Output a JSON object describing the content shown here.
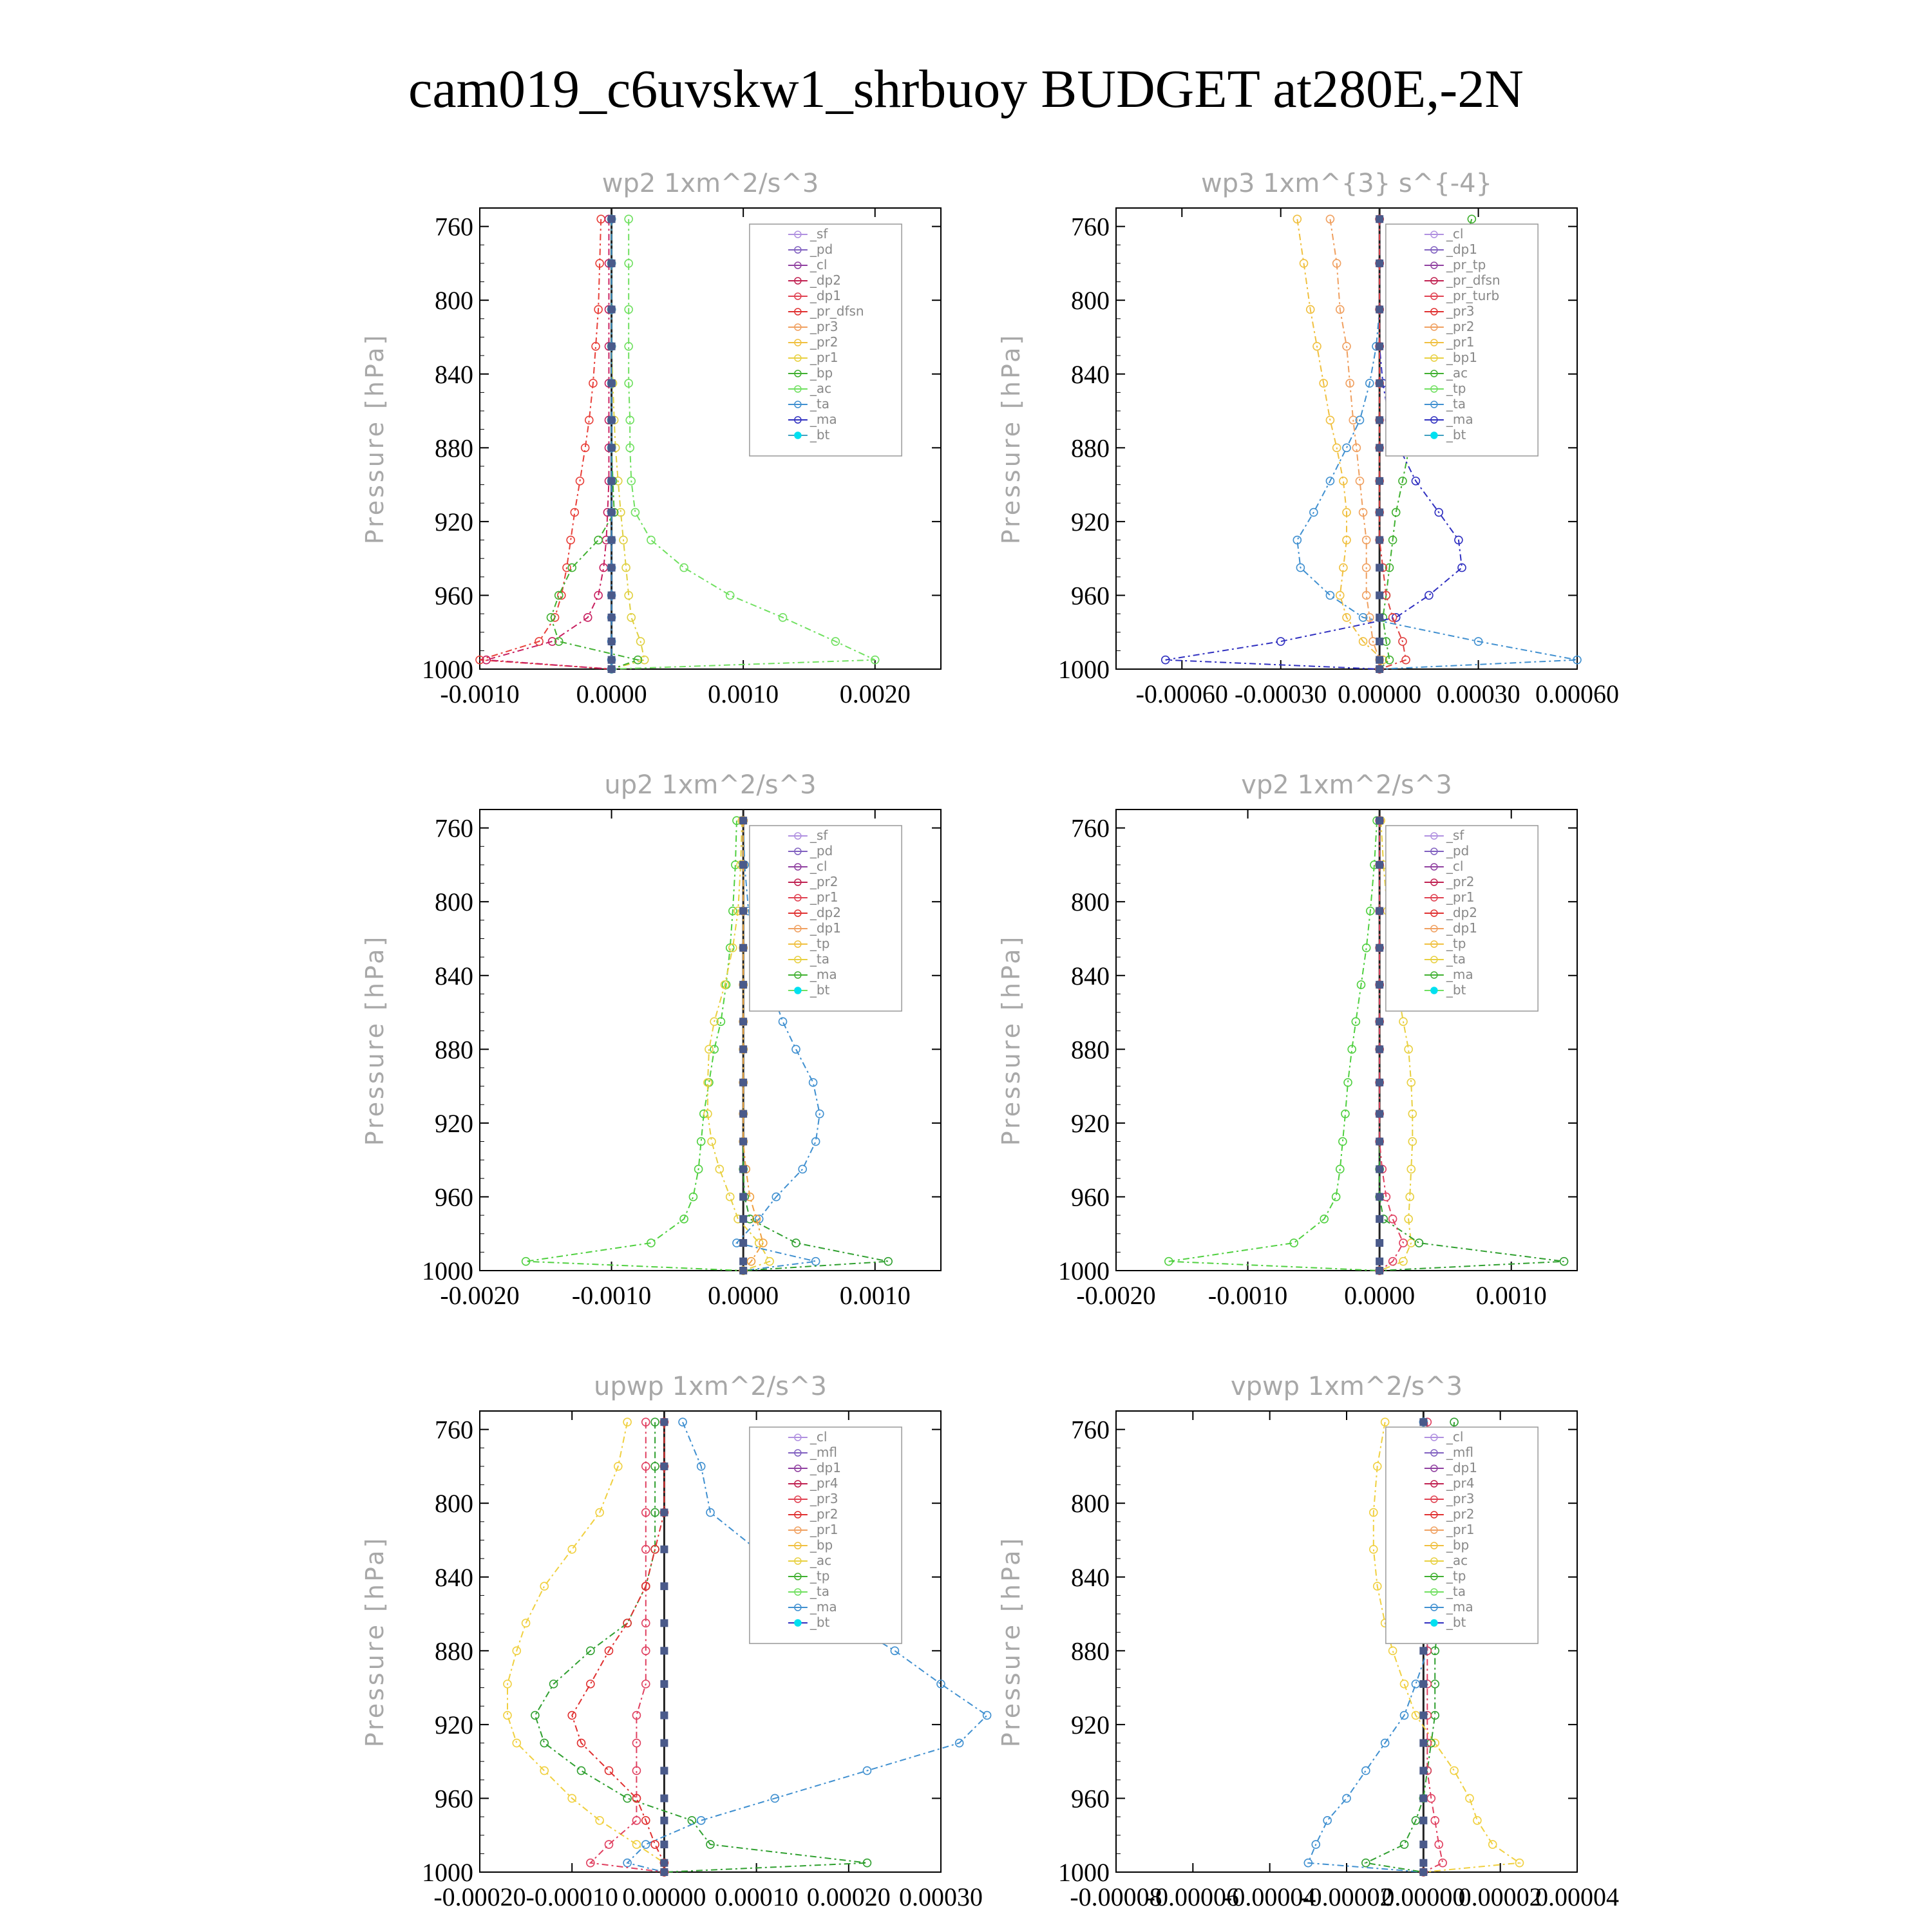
{
  "title": "cam019_c6uvskw1_shrbuoy  BUDGET at280E,-2N",
  "chart_data": [
    {
      "type": "line",
      "title": "wp2   1xm^2/s^3",
      "ylabel": "Pressure [hPa]",
      "xlim": [
        -0.001,
        0.0025
      ],
      "ylim": [
        750,
        1000
      ],
      "xticks": [
        "-0.0010",
        "0.0000",
        "0.0010",
        "0.0020"
      ],
      "xtick_values": [
        -0.001,
        0,
        0.001,
        0.002
      ],
      "yticks": [
        "760",
        "800",
        "840",
        "880",
        "920",
        "960",
        "1000"
      ],
      "legend_position": "top-right",
      "legend": [
        "_sf",
        "_pd",
        "_cl",
        "_dp2",
        "_dp1",
        "_pr_dfsn",
        "_pr3",
        "_pr2",
        "_pr1",
        "_bp",
        "_ac",
        "_ta",
        "_ma",
        "_bt"
      ],
      "p": [
        756,
        780,
        805,
        825,
        845,
        865,
        880,
        898,
        915,
        930,
        945,
        960,
        972,
        985,
        995,
        1000
      ],
      "series": [
        {
          "name": "_dp1",
          "color": "#e8403a",
          "values": [
            -8e-05,
            -9e-05,
            -0.0001,
            -0.00012,
            -0.00014,
            -0.00017,
            -0.0002,
            -0.00024,
            -0.00028,
            -0.00031,
            -0.00034,
            -0.00038,
            -0.00043,
            -0.00055,
            -0.001,
            0
          ]
        },
        {
          "name": "_dp2",
          "color": "#c82060",
          "values": [
            -2e-05,
            -2e-05,
            -2e-05,
            -2e-05,
            -2e-05,
            -2e-05,
            -2e-05,
            -2e-05,
            -3e-05,
            -4e-05,
            -6e-05,
            -0.0001,
            -0.00018,
            -0.00045,
            -0.00095,
            0
          ]
        },
        {
          "name": "_pr1",
          "color": "#e0d040",
          "values": [
            0,
            0,
            0,
            0,
            1e-05,
            2e-05,
            3e-05,
            5e-05,
            7e-05,
            9e-05,
            0.00011,
            0.00013,
            0.00015,
            0.00022,
            0.00025,
            0
          ]
        },
        {
          "name": "_bp",
          "color": "#40b030",
          "values": [
            0,
            0,
            0,
            0,
            0,
            0,
            0,
            1e-05,
            2e-05,
            -0.0001,
            -0.0003,
            -0.0004,
            -0.00046,
            -0.0004,
            0.0002,
            0
          ]
        },
        {
          "name": "_ac",
          "color": "#70e060",
          "values": [
            0.00013,
            0.00013,
            0.00013,
            0.00013,
            0.00013,
            0.00014,
            0.00014,
            0.00015,
            0.00018,
            0.0003,
            0.00055,
            0.0009,
            0.0013,
            0.0017,
            0.002,
            0
          ]
        },
        {
          "name": "_ma",
          "color": "#4090d0",
          "values": [
            0,
            0,
            0,
            0,
            0,
            0,
            0,
            0,
            0,
            0,
            0,
            0,
            0,
            0,
            0,
            0
          ]
        }
      ]
    },
    {
      "type": "line",
      "title": "wp3   1xm^{3} s^{-4}",
      "ylabel": "Pressure [hPa]",
      "xlim": [
        -0.0008,
        0.0006
      ],
      "ylim": [
        750,
        1000
      ],
      "xticks": [
        "-0.00060",
        "-0.00030",
        "0.00000",
        "0.00030",
        "0.00060"
      ],
      "xtick_values": [
        -0.0006,
        -0.0003,
        0,
        0.0003,
        0.0006
      ],
      "yticks": [
        "760",
        "800",
        "840",
        "880",
        "920",
        "960",
        "1000"
      ],
      "legend_position": "top-right",
      "legend": [
        "_cl",
        "_dp1",
        "_pr_tp",
        "_pr_dfsn",
        "_pr_turb",
        "_pr3",
        "_pr2",
        "_pr1",
        "_bp1",
        "_ac",
        "_tp",
        "_ta",
        "_ma",
        "_bt"
      ],
      "p": [
        756,
        780,
        805,
        825,
        845,
        865,
        880,
        898,
        915,
        930,
        945,
        960,
        972,
        985,
        995,
        1000
      ],
      "series": [
        {
          "name": "_pr1",
          "color": "#f0c040",
          "values": [
            -0.00025,
            -0.00023,
            -0.00021,
            -0.00019,
            -0.00017,
            -0.00015,
            -0.00013,
            -0.00011,
            -0.0001,
            -0.0001,
            -0.00011,
            -0.00012,
            -0.0001,
            -5e-05,
            1e-05,
            0
          ]
        },
        {
          "name": "_pr2",
          "color": "#f0a060",
          "values": [
            -0.00015,
            -0.00013,
            -0.00012,
            -0.0001,
            -9e-05,
            -8e-05,
            -7e-05,
            -6e-05,
            -5e-05,
            -4e-05,
            -4e-05,
            -4e-05,
            -3e-05,
            -2e-05,
            0,
            0
          ]
        },
        {
          "name": "_ac",
          "color": "#40b030",
          "values": [
            0.00028,
            0.00024,
            0.0002,
            0.00017,
            0.00014,
            0.00011,
            9e-05,
            7e-05,
            5e-05,
            4e-05,
            3e-05,
            2e-05,
            1e-05,
            2e-05,
            3e-05,
            0
          ]
        },
        {
          "name": "_tp",
          "color": "#4090d0",
          "values": [
            0,
            0,
            0,
            -1e-05,
            -3e-05,
            -6e-05,
            -0.0001,
            -0.00015,
            -0.0002,
            -0.00025,
            -0.00024,
            -0.00015,
            -5e-05,
            0.0003,
            0.0006,
            0
          ]
        },
        {
          "name": "_ta",
          "color": "#3030c0",
          "values": [
            0,
            0,
            0,
            0,
            1e-05,
            3e-05,
            6e-05,
            0.00011,
            0.00018,
            0.00024,
            0.00025,
            0.00015,
            5e-05,
            -0.0003,
            -0.00065,
            0
          ]
        },
        {
          "name": "_dp1",
          "color": "#e04040",
          "values": [
            0,
            0,
            0,
            0,
            0,
            0,
            0,
            0,
            0,
            0,
            1e-05,
            2e-05,
            4e-05,
            7e-05,
            8e-05,
            0
          ]
        }
      ]
    },
    {
      "type": "line",
      "title": "up2   1xm^2/s^3",
      "ylabel": "Pressure [hPa]",
      "xlim": [
        -0.002,
        0.0015
      ],
      "ylim": [
        750,
        1000
      ],
      "xticks": [
        "-0.0020",
        "-0.0010",
        "0.0000",
        "0.0010"
      ],
      "xtick_values": [
        -0.002,
        -0.001,
        0,
        0.001
      ],
      "yticks": [
        "760",
        "800",
        "840",
        "880",
        "920",
        "960",
        "1000"
      ],
      "legend_position": "top-right",
      "legend": [
        "_sf",
        "_pd",
        "_cl",
        "_pr2",
        "_pr1",
        "_dp2",
        "_dp1",
        "_tp",
        "_ta",
        "_ma",
        "_bt"
      ],
      "p": [
        756,
        780,
        805,
        825,
        845,
        865,
        880,
        898,
        915,
        930,
        945,
        960,
        972,
        985,
        995,
        1000
      ],
      "series": [
        {
          "name": "_dp1",
          "color": "#50d040",
          "values": [
            -5e-05,
            -6e-05,
            -8e-05,
            -0.0001,
            -0.00013,
            -0.00017,
            -0.00022,
            -0.00026,
            -0.0003,
            -0.00032,
            -0.00034,
            -0.00038,
            -0.00045,
            -0.0007,
            -0.00165,
            0
          ]
        },
        {
          "name": "_pr1",
          "color": "#e8d040",
          "values": [
            -1e-05,
            -2e-05,
            -4e-05,
            -8e-05,
            -0.00014,
            -0.00022,
            -0.00026,
            -0.00027,
            -0.00027,
            -0.00024,
            -0.00018,
            -0.0001,
            -4e-05,
            0.00012,
            0.0002,
            0
          ]
        },
        {
          "name": "_tp",
          "color": "#4090d0",
          "values": [
            0,
            1e-05,
            4e-05,
            0.00012,
            0.0002,
            0.0003,
            0.0004,
            0.00053,
            0.00058,
            0.00055,
            0.00045,
            0.00025,
            0.00012,
            -5e-05,
            0.00055,
            0
          ]
        },
        {
          "name": "_dp2",
          "color": "#30a030",
          "values": [
            0,
            0,
            0,
            0,
            0,
            0,
            0,
            0,
            0,
            0,
            0,
            1e-05,
            5e-05,
            0.0004,
            0.0011,
            0
          ]
        },
        {
          "name": "_pr2",
          "color": "#f0a040",
          "values": [
            0,
            0,
            0,
            0,
            0,
            0,
            0,
            0,
            0,
            0,
            2e-05,
            5e-05,
            0.0001,
            0.00015,
            6e-05,
            0
          ]
        }
      ]
    },
    {
      "type": "line",
      "title": "vp2   1xm^2/s^3",
      "ylabel": "Pressure [hPa]",
      "xlim": [
        -0.002,
        0.0015
      ],
      "ylim": [
        750,
        1000
      ],
      "xticks": [
        "-0.0020",
        "-0.0010",
        "0.0000",
        "0.0010"
      ],
      "xtick_values": [
        -0.002,
        -0.001,
        0,
        0.001
      ],
      "yticks": [
        "760",
        "800",
        "840",
        "880",
        "920",
        "960",
        "1000"
      ],
      "legend_position": "top-right",
      "legend": [
        "_sf",
        "_pd",
        "_cl",
        "_pr2",
        "_pr1",
        "_dp2",
        "_dp1",
        "_tp",
        "_ta",
        "_ma",
        "_bt"
      ],
      "p": [
        756,
        780,
        805,
        825,
        845,
        865,
        880,
        898,
        915,
        930,
        945,
        960,
        972,
        985,
        995,
        1000
      ],
      "series": [
        {
          "name": "_dp1",
          "color": "#50d040",
          "values": [
            -2e-05,
            -4e-05,
            -7e-05,
            -0.0001,
            -0.00014,
            -0.00018,
            -0.00021,
            -0.00024,
            -0.00026,
            -0.00028,
            -0.0003,
            -0.00033,
            -0.00042,
            -0.00065,
            -0.0016,
            0
          ]
        },
        {
          "name": "_pr1",
          "color": "#e8d040",
          "values": [
            1e-05,
            3e-05,
            6e-05,
            9e-05,
            0.00013,
            0.00018,
            0.00022,
            0.00024,
            0.00025,
            0.00025,
            0.00024,
            0.00023,
            0.00022,
            0.00024,
            0.00018,
            0
          ]
        },
        {
          "name": "_dp2",
          "color": "#30a030",
          "values": [
            0,
            0,
            0,
            0,
            0,
            0,
            0,
            0,
            0,
            0,
            0,
            0,
            3e-05,
            0.0003,
            0.0014,
            0
          ]
        },
        {
          "name": "_pd",
          "color": "#e04060",
          "values": [
            0,
            0,
            0,
            0,
            0,
            0,
            0,
            0,
            0,
            0,
            2e-05,
            5e-05,
            0.0001,
            0.00018,
            0.0001,
            0
          ]
        }
      ]
    },
    {
      "type": "line",
      "title": "upwp   1xm^2/s^3",
      "ylabel": "Pressure [hPa]",
      "xlim": [
        -0.0002,
        0.0003
      ],
      "ylim": [
        750,
        1000
      ],
      "xticks": [
        "-0.00020",
        "-0.00010",
        "0.00000",
        "0.00010",
        "0.00020",
        "0.00030"
      ],
      "xtick_values": [
        -0.0002,
        -0.0001,
        0,
        0.0001,
        0.0002,
        0.0003
      ],
      "yticks": [
        "760",
        "800",
        "840",
        "880",
        "920",
        "960",
        "1000"
      ],
      "legend_position": "top-right",
      "legend": [
        "_cl",
        "_mfl",
        "_dp1",
        "_pr4",
        "_pr3",
        "_pr2",
        "_pr1",
        "_bp",
        "_ac",
        "_tp",
        "_ta",
        "_ma",
        "_bt"
      ],
      "p": [
        756,
        780,
        805,
        825,
        845,
        865,
        880,
        898,
        915,
        930,
        945,
        960,
        972,
        985,
        995,
        1000
      ],
      "series": [
        {
          "name": "_pr1",
          "color": "#f0d040",
          "values": [
            -4e-05,
            -5e-05,
            -7e-05,
            -0.0001,
            -0.00013,
            -0.00015,
            -0.00016,
            -0.00017,
            -0.00017,
            -0.00016,
            -0.00013,
            -0.0001,
            -7e-05,
            -3e-05,
            0,
            0
          ]
        },
        {
          "name": "_bp",
          "color": "#30a030",
          "values": [
            -1e-05,
            -1e-05,
            -1e-05,
            -1e-05,
            -2e-05,
            -4e-05,
            -8e-05,
            -0.00012,
            -0.00014,
            -0.00013,
            -9e-05,
            -4e-05,
            3e-05,
            5e-05,
            0.00022,
            0
          ]
        },
        {
          "name": "_tp",
          "color": "#4090d0",
          "values": [
            2e-05,
            4e-05,
            5e-05,
            0.0001,
            0.00015,
            0.0002,
            0.00025,
            0.0003,
            0.00035,
            0.00032,
            0.00022,
            0.00012,
            4e-05,
            -2e-05,
            -4e-05,
            0
          ]
        },
        {
          "name": "_dp1",
          "color": "#e04060",
          "values": [
            -2e-05,
            -2e-05,
            -2e-05,
            -2e-05,
            -2e-05,
            -2e-05,
            -2e-05,
            -2e-05,
            -3e-05,
            -3e-05,
            -3e-05,
            -3e-05,
            -3e-05,
            -6e-05,
            -8e-05,
            0
          ]
        },
        {
          "name": "_pr4",
          "color": "#e03030",
          "values": [
            0,
            0,
            0,
            -1e-05,
            -2e-05,
            -4e-05,
            -6e-05,
            -8e-05,
            -0.0001,
            -9e-05,
            -6e-05,
            -3e-05,
            -2e-05,
            -1e-05,
            0,
            0
          ]
        }
      ]
    },
    {
      "type": "line",
      "title": "vpwp   1xm^2/s^3",
      "ylabel": "Pressure [hPa]",
      "xlim": [
        -8e-05,
        4e-05
      ],
      "ylim": [
        750,
        1000
      ],
      "xticks": [
        "-0.00008",
        "-0.00006",
        "-0.00004",
        "-0.00002",
        "0.00000",
        "0.00002",
        "0.00004"
      ],
      "xtick_values": [
        -8e-05,
        -6e-05,
        -4e-05,
        -2e-05,
        0,
        2e-05,
        4e-05
      ],
      "yticks": [
        "760",
        "800",
        "840",
        "880",
        "920",
        "960",
        "1000"
      ],
      "legend_position": "top-right",
      "legend": [
        "_cl",
        "_mfl",
        "_dp1",
        "_pr4",
        "_pr3",
        "_pr2",
        "_pr1",
        "_bp",
        "_ac",
        "_tp",
        "_ta",
        "_ma",
        "_bt"
      ],
      "p": [
        756,
        780,
        805,
        825,
        845,
        865,
        880,
        898,
        915,
        930,
        945,
        960,
        972,
        985,
        995,
        1000
      ],
      "series": [
        {
          "name": "_pr1",
          "color": "#f0d040",
          "values": [
            -1e-05,
            -1.2e-05,
            -1.3e-05,
            -1.3e-05,
            -1.2e-05,
            -1e-05,
            -8e-06,
            -5e-06,
            -2e-06,
            3e-06,
            8e-06,
            1.2e-05,
            1.4e-05,
            1.8e-05,
            2.5e-05,
            0
          ]
        },
        {
          "name": "_tp",
          "color": "#4090d0",
          "values": [
            0,
            0,
            0,
            0,
            1e-06,
            1e-06,
            1e-06,
            -2e-06,
            -5e-06,
            -1e-05,
            -1.5e-05,
            -2e-05,
            -2.5e-05,
            -2.8e-05,
            -3e-05,
            0
          ]
        },
        {
          "name": "_bp",
          "color": "#30a030",
          "values": [
            8e-06,
            7e-06,
            6e-06,
            5e-06,
            4e-06,
            4e-06,
            3e-06,
            3e-06,
            3e-06,
            2e-06,
            1e-06,
            0,
            -2e-06,
            -5e-06,
            -1.5e-05,
            0
          ]
        },
        {
          "name": "_dp1",
          "color": "#e04060",
          "values": [
            1e-06,
            1e-06,
            1e-06,
            1e-06,
            1e-06,
            1e-06,
            1e-06,
            1e-06,
            1e-06,
            1e-06,
            1e-06,
            2e-06,
            3e-06,
            4e-06,
            5e-06,
            0
          ]
        }
      ]
    }
  ]
}
